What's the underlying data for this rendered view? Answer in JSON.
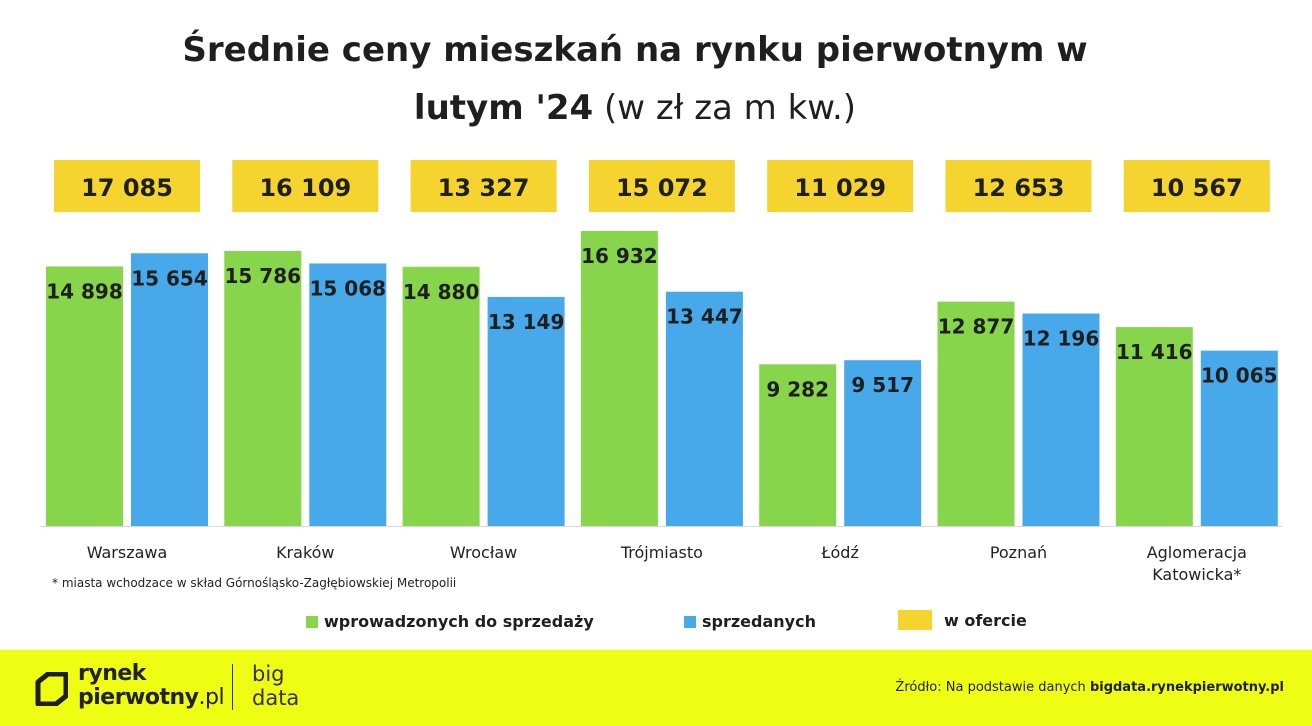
{
  "title_line1": "Średnie ceny mieszkań na rynku pierwotnym w",
  "title_line2_bold": "lutym '24",
  "title_line2_normal": "(w zł za m kw.)",
  "chart_data": {
    "type": "bar",
    "categories": [
      "Warszawa",
      "Kraków",
      "Wrocław",
      "Trójmiasto",
      "Łódź",
      "Poznań",
      "Aglomeracja Katowicka*"
    ],
    "series": [
      {
        "name": "wprowadzonych do sprzedaży",
        "color": "#86d54b",
        "values": [
          14898,
          15786,
          14880,
          16932,
          9282,
          12877,
          11416
        ],
        "labels": [
          "14 898",
          "15 786",
          "14 880",
          "16 932",
          "9 282",
          "12 877",
          "11 416"
        ]
      },
      {
        "name": "sprzedanych",
        "color": "#47a8ea",
        "values": [
          15654,
          15068,
          13149,
          13447,
          9517,
          12196,
          10065
        ],
        "labels": [
          "15 654",
          "15 068",
          "13 149",
          "13 447",
          "9 517",
          "12 196",
          "10 065"
        ]
      },
      {
        "name": "w ofercie",
        "color": "#f5d430",
        "values": [
          17085,
          16109,
          13327,
          15072,
          11029,
          12653,
          10567
        ],
        "labels": [
          "17 085",
          "16 109",
          "13 327",
          "15 072",
          "11 029",
          "12 653",
          "10 567"
        ]
      }
    ],
    "ylim": [
      0,
      16932
    ],
    "grid": false,
    "legend": "bottom"
  },
  "footnote": "* miasta wchodzace w skład Górnośląsko-Zagłębiowskiej Metropolii",
  "brand": {
    "line1": "rynek",
    "line2": "pierwotny",
    "line2_suffix": ".pl",
    "bigdata_line1": "big",
    "bigdata_line2": "data",
    "accent": "#eefd12"
  },
  "source_prefix": "Źródło: Na podstawie danych",
  "source_bold": "bigdata.rynekpierwotny.pl"
}
